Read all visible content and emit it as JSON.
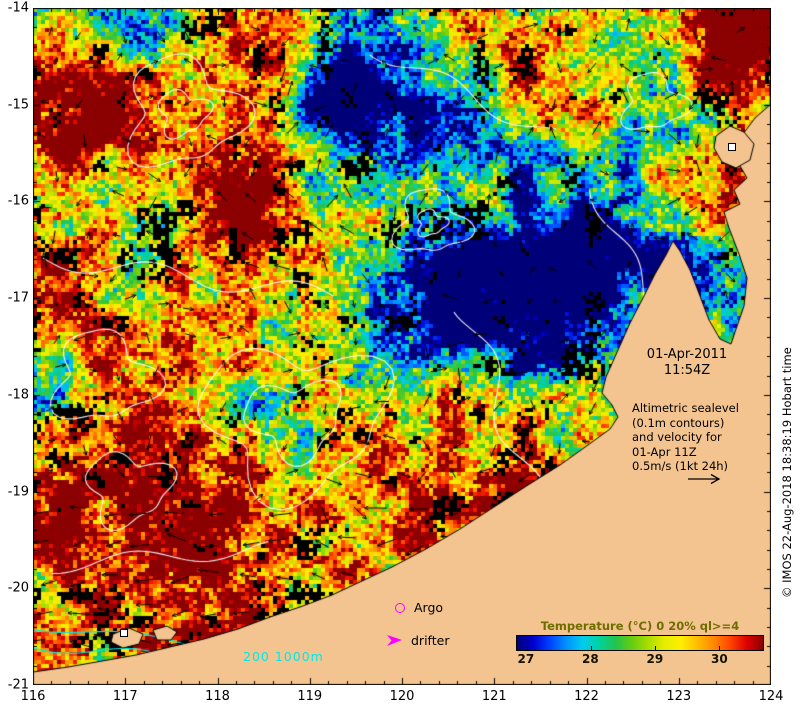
{
  "figure": {
    "background": "#ffffff",
    "land_color": "#f4c490",
    "coast_color": "#000000",
    "contour_color": "#ffffff",
    "arrow_color": "#000000",
    "isobath_color": "#00e8e8",
    "marker_color": "#ff00ff"
  },
  "axes": {
    "x_ticks": [
      "116",
      "117",
      "118",
      "119",
      "120",
      "121",
      "122",
      "123",
      "124"
    ],
    "y_ticks": [
      "-14",
      "-15",
      "-16",
      "-17",
      "-18",
      "-19",
      "-20",
      "-21"
    ]
  },
  "timestamp": {
    "date": "01-Apr-2011",
    "time": "11:54Z"
  },
  "annotation": {
    "lines": [
      "Altimetric sealevel",
      "(0.1m contours)",
      "and velocity for",
      "01-Apr 11Z",
      "0.5m/s (1kt 24h)"
    ]
  },
  "legend": {
    "argo": "Argo",
    "drifter": "drifter",
    "isobaths": "200 1000m"
  },
  "colorbar": {
    "title": "Temperature (°C) 0 20% ql>=4",
    "title_color": "#6e6e00",
    "ticks": [
      "27",
      "28",
      "29",
      "30"
    ],
    "tick_positions_pct": [
      4,
      30,
      56,
      82
    ],
    "gradient": [
      "#000078",
      "#0000d2",
      "#0041ff",
      "#0091ff",
      "#00ccee",
      "#00d2a0",
      "#22c34e",
      "#66cc11",
      "#aadd00",
      "#e6ee00",
      "#ffee00",
      "#ffbb00",
      "#ff8800",
      "#ff4400",
      "#dd0000",
      "#8b0000"
    ]
  },
  "copyright": "© IMOS 22-Aug-2018 18:38:19 Hobart time"
}
